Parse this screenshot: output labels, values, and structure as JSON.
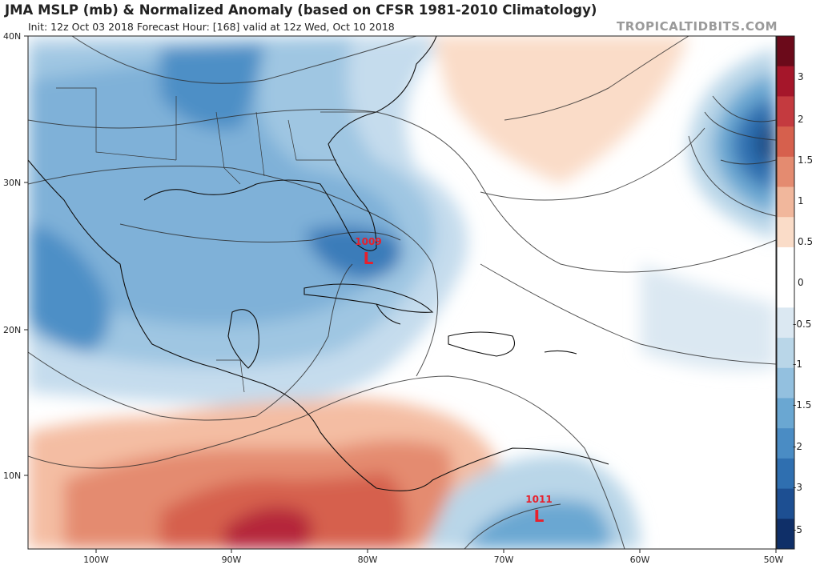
{
  "header": {
    "title": "JMA MSLP (mb) & Normalized Anomaly (based on CFSR 1981-2010 Climatology)",
    "subtitle": "Init: 12z Oct 03 2018   Forecast Hour: [168]   valid at 12z Wed, Oct 10 2018",
    "brand": "TROPICALTIDBITS.COM"
  },
  "map": {
    "lat_labels": [
      "40N",
      "30N",
      "20N",
      "10N"
    ],
    "lon_labels": [
      "100W",
      "90W",
      "80W",
      "70W",
      "60W",
      "50W"
    ],
    "pressure_centers": [
      {
        "value": "1009",
        "symbol": "L"
      },
      {
        "value": "1011",
        "symbol": "L"
      }
    ]
  },
  "colorbar": {
    "labels": [
      "3",
      "2",
      "1.5",
      "1",
      "0.5",
      "0",
      "-0.5",
      "-1",
      "-1.5",
      "-2",
      "-3",
      "-5"
    ],
    "colors": [
      "#6b0a1a",
      "#a5162a",
      "#c43a3f",
      "#d6604d",
      "#e48b70",
      "#f1b79c",
      "#fadcc8",
      "#ffffff",
      "#ffffff",
      "#dbe8f2",
      "#b9d6e8",
      "#93c0df",
      "#6aa7d2",
      "#4a8cc4",
      "#2f6fb0",
      "#1d4f92",
      "#0f2f68"
    ]
  }
}
